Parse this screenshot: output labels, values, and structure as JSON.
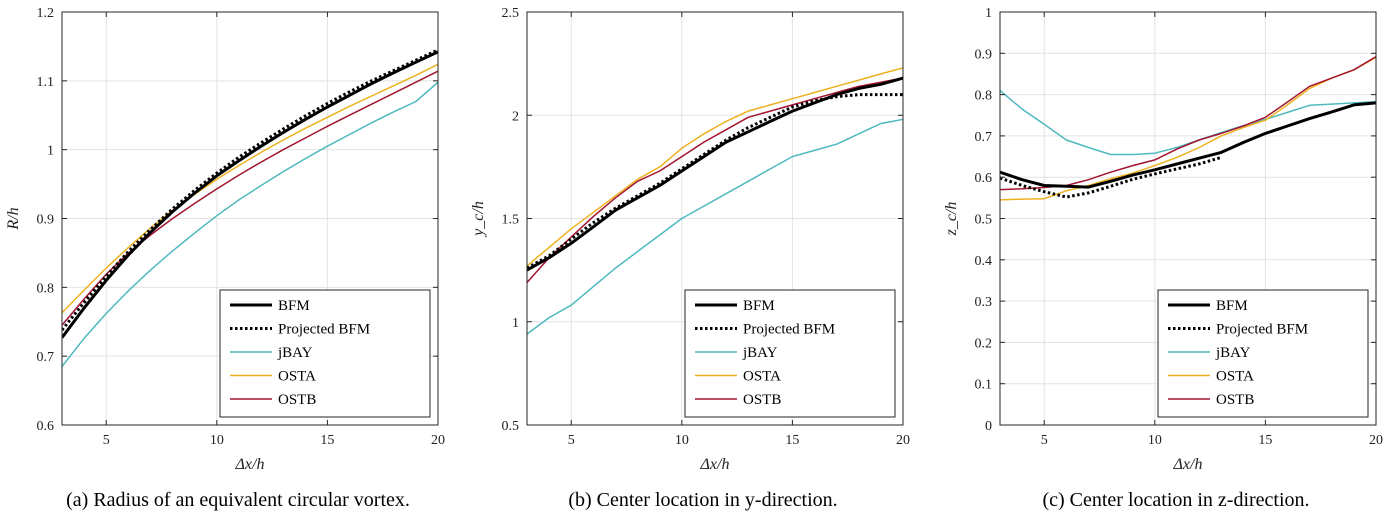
{
  "chart_data": [
    {
      "type": "line",
      "caption": "(a) Radius of an equivalent circular vortex.",
      "xlabel": "Δx/h",
      "ylabel": "R/h",
      "xlim": [
        3,
        20
      ],
      "ylim": [
        0.6,
        1.2
      ],
      "xticks": [
        5,
        10,
        15,
        20
      ],
      "yticks": [
        0.6,
        0.7,
        0.8,
        0.9,
        1,
        1.1,
        1.2
      ],
      "grid": true,
      "legend_position": "bottom-right",
      "series": [
        {
          "name": "BFM",
          "color": "#000000",
          "style": "solid-thick",
          "x": [
            3,
            4,
            5,
            6,
            7,
            8,
            9,
            10,
            11,
            12,
            13,
            14,
            15,
            16,
            17,
            18,
            19,
            20
          ],
          "y": [
            0.727,
            0.77,
            0.81,
            0.847,
            0.88,
            0.91,
            0.937,
            0.962,
            0.984,
            1.005,
            1.025,
            1.044,
            1.062,
            1.079,
            1.096,
            1.112,
            1.127,
            1.142
          ]
        },
        {
          "name": "Projected BFM",
          "color": "#000000",
          "style": "dotted",
          "x": [
            3,
            4,
            5,
            6,
            7,
            8,
            9,
            10,
            11,
            12,
            13,
            14,
            15,
            16,
            17,
            18,
            19,
            20
          ],
          "y": [
            0.738,
            0.778,
            0.816,
            0.852,
            0.884,
            0.914,
            0.941,
            0.966,
            0.989,
            1.01,
            1.03,
            1.049,
            1.067,
            1.084,
            1.1,
            1.115,
            1.13,
            1.145
          ]
        },
        {
          "name": "jBAY",
          "color": "#4fb9c0",
          "style": "solid",
          "x": [
            3,
            4,
            5,
            6,
            7,
            8,
            9,
            10,
            11,
            12,
            13,
            14,
            15,
            16,
            17,
            18,
            19,
            20
          ],
          "y": [
            0.685,
            0.726,
            0.762,
            0.795,
            0.825,
            0.853,
            0.879,
            0.904,
            0.927,
            0.948,
            0.968,
            0.987,
            1.005,
            1.022,
            1.039,
            1.055,
            1.07,
            1.098
          ]
        },
        {
          "name": "OSTA",
          "color": "#edb120",
          "style": "solid",
          "x": [
            3,
            4,
            5,
            6,
            7,
            8,
            9,
            10,
            11,
            12,
            13,
            14,
            15,
            16,
            17,
            18,
            19,
            20
          ],
          "y": [
            0.763,
            0.796,
            0.828,
            0.858,
            0.886,
            0.912,
            0.935,
            0.957,
            0.977,
            0.996,
            1.014,
            1.031,
            1.047,
            1.063,
            1.078,
            1.093,
            1.108,
            1.124
          ]
        },
        {
          "name": "OSTB",
          "color": "#a2142f",
          "style": "solid",
          "x": [
            3,
            4,
            5,
            6,
            7,
            8,
            9,
            10,
            11,
            12,
            13,
            14,
            15,
            16,
            17,
            18,
            19,
            20
          ],
          "y": [
            0.745,
            0.783,
            0.819,
            0.85,
            0.876,
            0.9,
            0.922,
            0.943,
            0.963,
            0.982,
            1.0,
            1.017,
            1.034,
            1.05,
            1.066,
            1.082,
            1.098,
            1.114
          ]
        }
      ]
    },
    {
      "type": "line",
      "caption": "(b) Center location in y-direction.",
      "xlabel": "Δx/h",
      "ylabel": "y_c/h",
      "xlim": [
        3,
        20
      ],
      "ylim": [
        0.5,
        2.5
      ],
      "xticks": [
        5,
        10,
        15,
        20
      ],
      "yticks": [
        0.5,
        1,
        1.5,
        2,
        2.5
      ],
      "grid": true,
      "legend_position": "bottom-right",
      "series": [
        {
          "name": "BFM",
          "color": "#000000",
          "style": "solid-thick",
          "x": [
            3,
            4,
            5,
            6,
            7,
            8,
            9,
            10,
            11,
            12,
            13,
            14,
            15,
            16,
            17,
            18,
            19,
            20
          ],
          "y": [
            1.25,
            1.31,
            1.38,
            1.46,
            1.54,
            1.6,
            1.66,
            1.73,
            1.8,
            1.87,
            1.92,
            1.97,
            2.02,
            2.06,
            2.1,
            2.13,
            2.15,
            2.18
          ]
        },
        {
          "name": "Projected BFM",
          "color": "#000000",
          "style": "dotted",
          "x": [
            3,
            4,
            5,
            6,
            7,
            8,
            9,
            10,
            11,
            12,
            13,
            14,
            15,
            16,
            17,
            18,
            19,
            20
          ],
          "y": [
            1.26,
            1.32,
            1.4,
            1.48,
            1.55,
            1.61,
            1.67,
            1.74,
            1.81,
            1.88,
            1.94,
            1.99,
            2.04,
            2.07,
            2.09,
            2.1,
            2.1,
            2.1
          ]
        },
        {
          "name": "jBAY",
          "color": "#4fb9c0",
          "style": "solid",
          "x": [
            3,
            4,
            5,
            6,
            7,
            8,
            9,
            10,
            11,
            12,
            13,
            14,
            15,
            16,
            17,
            18,
            19,
            20
          ],
          "y": [
            0.94,
            1.02,
            1.08,
            1.17,
            1.26,
            1.34,
            1.42,
            1.5,
            1.56,
            1.62,
            1.68,
            1.74,
            1.8,
            1.83,
            1.86,
            1.91,
            1.96,
            1.98
          ]
        },
        {
          "name": "OSTA",
          "color": "#edb120",
          "style": "solid",
          "x": [
            3,
            4,
            5,
            6,
            7,
            8,
            9,
            10,
            11,
            12,
            13,
            14,
            15,
            16,
            17,
            18,
            19,
            20
          ],
          "y": [
            1.27,
            1.36,
            1.45,
            1.53,
            1.61,
            1.69,
            1.75,
            1.84,
            1.91,
            1.97,
            2.02,
            2.05,
            2.08,
            2.11,
            2.14,
            2.17,
            2.2,
            2.23
          ]
        },
        {
          "name": "OSTB",
          "color": "#a2142f",
          "style": "solid",
          "x": [
            3,
            4,
            5,
            6,
            7,
            8,
            9,
            10,
            11,
            12,
            13,
            14,
            15,
            16,
            17,
            18,
            19,
            20
          ],
          "y": [
            1.19,
            1.31,
            1.41,
            1.51,
            1.6,
            1.68,
            1.73,
            1.8,
            1.87,
            1.93,
            1.99,
            2.02,
            2.05,
            2.08,
            2.11,
            2.14,
            2.16,
            2.18
          ]
        }
      ]
    },
    {
      "type": "line",
      "caption": "(c) Center location in z-direction.",
      "xlabel": "Δx/h",
      "ylabel": "z_c/h",
      "xlim": [
        3,
        20
      ],
      "ylim": [
        0,
        1
      ],
      "xticks": [
        5,
        10,
        15,
        20
      ],
      "yticks": [
        0,
        0.1,
        0.2,
        0.3,
        0.4,
        0.5,
        0.6,
        0.7,
        0.8,
        0.9,
        1
      ],
      "grid": true,
      "legend_position": "bottom-right",
      "series": [
        {
          "name": "BFM",
          "color": "#000000",
          "style": "solid-thick",
          "x": [
            3,
            4,
            5,
            6,
            7,
            8,
            9,
            10,
            11,
            12,
            13,
            14,
            15,
            16,
            17,
            18,
            19,
            20
          ],
          "y": [
            0.612,
            0.594,
            0.58,
            0.578,
            0.576,
            0.59,
            0.605,
            0.618,
            0.632,
            0.646,
            0.66,
            0.684,
            0.706,
            0.724,
            0.742,
            0.758,
            0.775,
            0.78
          ]
        },
        {
          "name": "Projected BFM",
          "color": "#000000",
          "style": "dotted",
          "x": [
            3,
            4,
            5,
            6,
            7,
            8,
            9,
            10,
            11,
            12,
            13
          ],
          "y": [
            0.598,
            0.58,
            0.565,
            0.552,
            0.562,
            0.578,
            0.595,
            0.608,
            0.62,
            0.632,
            0.648
          ]
        },
        {
          "name": "jBAY",
          "color": "#4fb9c0",
          "style": "solid",
          "x": [
            3,
            4,
            5,
            6,
            7,
            8,
            9,
            10,
            11,
            12,
            13,
            14,
            15,
            16,
            17,
            18,
            19,
            20
          ],
          "y": [
            0.81,
            0.765,
            0.728,
            0.69,
            0.672,
            0.655,
            0.655,
            0.658,
            0.672,
            0.69,
            0.708,
            0.725,
            0.74,
            0.757,
            0.774,
            0.777,
            0.78,
            0.783
          ]
        },
        {
          "name": "OSTA",
          "color": "#edb120",
          "style": "solid",
          "x": [
            3,
            4,
            5,
            6,
            7,
            8,
            9,
            10,
            11,
            12,
            13,
            14,
            15,
            16,
            17,
            18,
            19,
            20
          ],
          "y": [
            0.545,
            0.547,
            0.548,
            0.567,
            0.58,
            0.596,
            0.61,
            0.628,
            0.648,
            0.672,
            0.7,
            0.72,
            0.738,
            0.775,
            0.815,
            0.84,
            0.86,
            0.89
          ]
        },
        {
          "name": "OSTB",
          "color": "#a2142f",
          "style": "solid",
          "x": [
            3,
            4,
            5,
            6,
            7,
            8,
            9,
            10,
            11,
            12,
            13,
            14,
            15,
            16,
            17,
            18,
            19,
            20
          ],
          "y": [
            0.57,
            0.572,
            0.575,
            0.58,
            0.594,
            0.612,
            0.628,
            0.642,
            0.668,
            0.69,
            0.706,
            0.724,
            0.745,
            0.782,
            0.82,
            0.84,
            0.86,
            0.892
          ]
        }
      ]
    }
  ]
}
